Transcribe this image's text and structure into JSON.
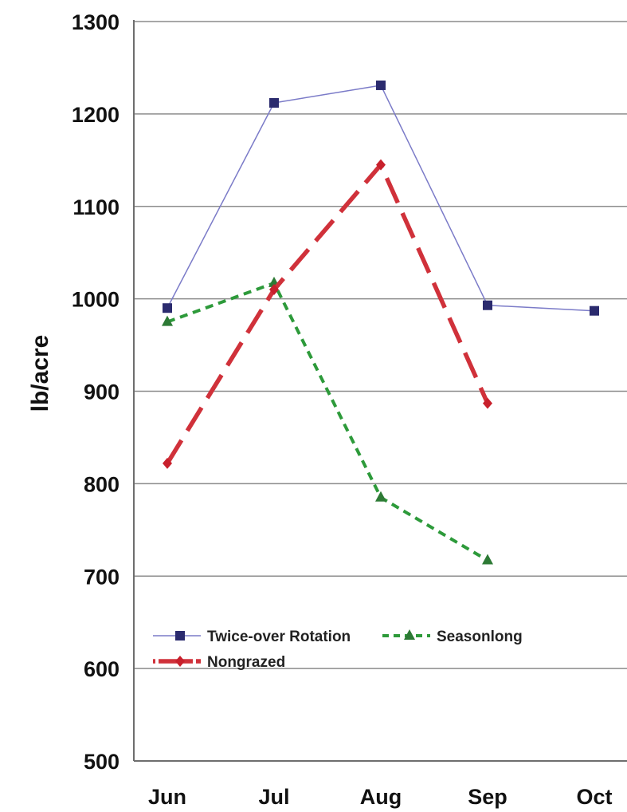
{
  "chart_data": {
    "type": "line",
    "title": "",
    "xlabel": "",
    "ylabel": "lb/acre",
    "categories": [
      "Jun",
      "Jul",
      "Aug",
      "Sep",
      "Oct"
    ],
    "ylim": [
      500,
      1300
    ],
    "yticks": [
      500,
      600,
      700,
      800,
      900,
      1000,
      1100,
      1200,
      1300
    ],
    "grid": true,
    "legend_position": "lower-left",
    "series": [
      {
        "name": "Twice-over Rotation",
        "values": [
          990,
          1212,
          1231,
          993,
          987
        ],
        "color": "#7b7bc8",
        "marker_color": "#2b2b6e",
        "marker": "square"
      },
      {
        "name": "Seasonlong",
        "values": [
          975,
          1017,
          785,
          717,
          null
        ],
        "color": "#2d9a3a",
        "marker_color": "#2d7a35",
        "marker": "triangle"
      },
      {
        "name": "Nongrazed",
        "values": [
          822,
          1010,
          1145,
          887,
          null
        ],
        "color": "#d0313a",
        "marker_color": "#c8202c",
        "marker": "diamond"
      }
    ]
  }
}
